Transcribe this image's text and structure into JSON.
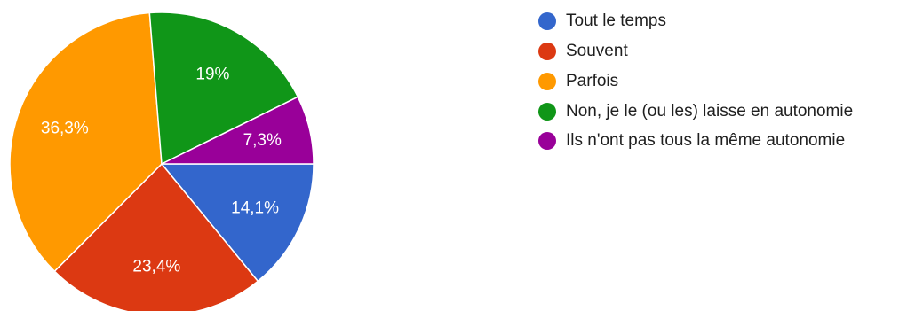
{
  "chart_data": {
    "type": "pie",
    "title": "",
    "slices": [
      {
        "label": "Tout le temps",
        "value": 14.1,
        "display": "14,1%",
        "color": "#3366cc"
      },
      {
        "label": "Souvent",
        "value": 23.4,
        "display": "23,4%",
        "color": "#dc3912"
      },
      {
        "label": "Parfois",
        "value": 36.3,
        "display": "36,3%",
        "color": "#ff9900"
      },
      {
        "label": "Non, je le (ou les) laisse en autonomie",
        "value": 19,
        "display": "19%",
        "color": "#109618"
      },
      {
        "label": "Ils n'ont pas tous la même autonomie",
        "value": 7.3,
        "display": "7,3%",
        "color": "#990099"
      }
    ],
    "legend_position": "right"
  }
}
